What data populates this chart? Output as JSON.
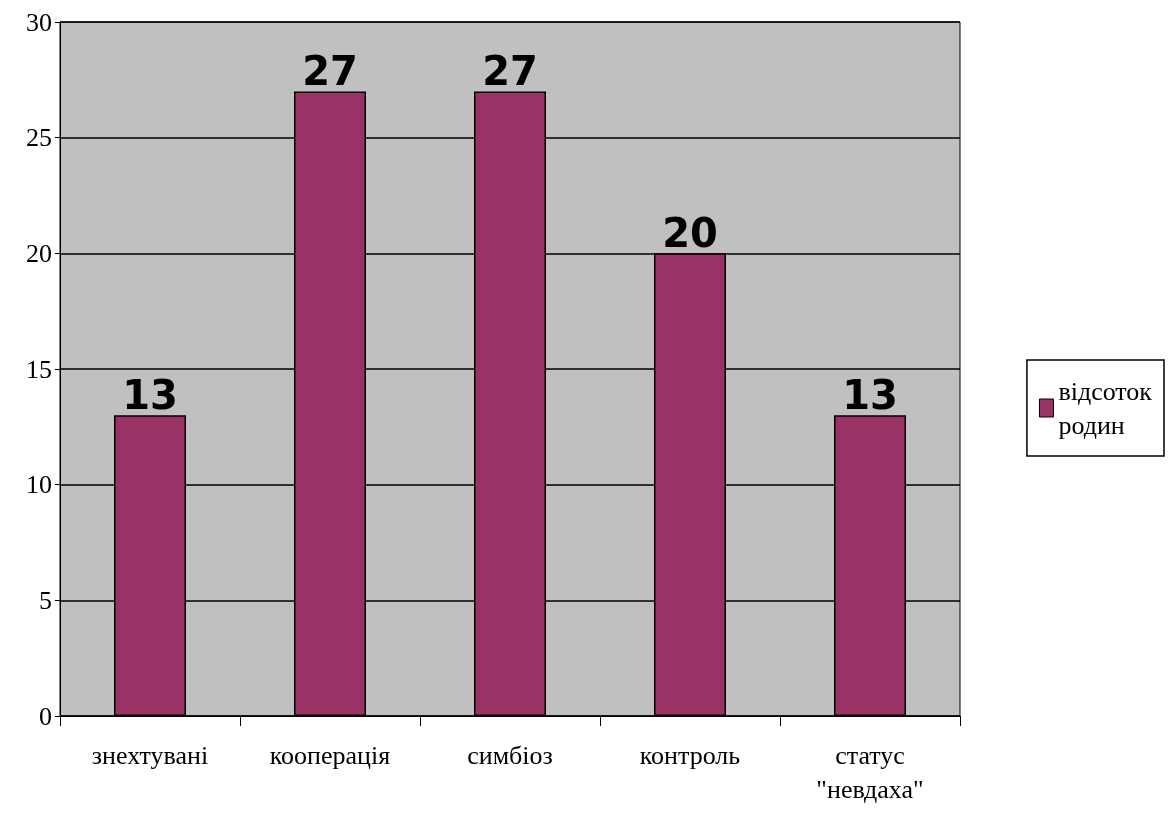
{
  "chart_data": {
    "type": "bar",
    "categories": [
      "знехтувані",
      "кооперація",
      "симбіоз",
      "контроль",
      "статус \"невдаха\""
    ],
    "series": [
      {
        "name": "відсоток родин",
        "color": "#993366",
        "values": [
          13,
          27,
          27,
          20,
          13
        ]
      }
    ],
    "ylim": [
      0,
      30
    ],
    "yticks": [
      0,
      5,
      10,
      15,
      20,
      25,
      30
    ],
    "grid": "y",
    "legend": "right",
    "data_labels": true
  }
}
